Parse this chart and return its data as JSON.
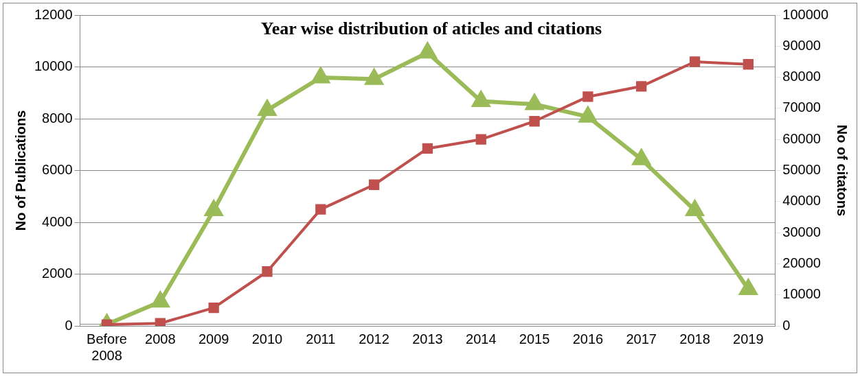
{
  "chart_data": {
    "type": "line",
    "title": "Year wise distribution of aticles and citations",
    "ylabel": "No of Publications",
    "y2label": "No of citatons",
    "categories": [
      "Before 2008",
      "2008",
      "2009",
      "2010",
      "2011",
      "2012",
      "2013",
      "2014",
      "2015",
      "2016",
      "2017",
      "2018",
      "2019"
    ],
    "series": [
      {
        "color": "#c0504d",
        "marker": "square",
        "values": [
          50,
          100,
          700,
          2100,
          4500,
          5450,
          6850,
          7200,
          7900,
          8850,
          9250,
          10200,
          10100
        ]
      },
      {
        "color": "#9bbb59",
        "marker": "triangle",
        "axis": "y2",
        "values": [
          500,
          7800,
          37200,
          69400,
          79900,
          79400,
          87900,
          72300,
          71300,
          67300,
          53600,
          37200,
          11800
        ]
      }
    ],
    "ylim": [
      0,
      12000
    ],
    "yticks": [
      0,
      2000,
      4000,
      6000,
      8000,
      10000,
      12000
    ],
    "y2lim": [
      0,
      100000
    ],
    "y2ticks": [
      0,
      10000,
      20000,
      30000,
      40000,
      50000,
      60000,
      70000,
      80000,
      90000,
      100000
    ],
    "grid": "y",
    "legend": false
  }
}
